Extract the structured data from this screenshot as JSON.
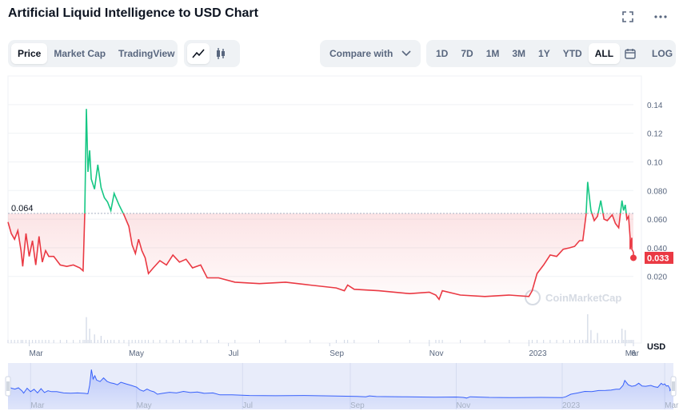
{
  "title": "Artificial Liquid Intelligence to USD Chart",
  "icons": {
    "fullscreen": "fullscreen-icon",
    "more": "more-icon",
    "calendar": "calendar-icon",
    "line": "line-chart-icon",
    "candle": "candlestick-icon"
  },
  "tabs": [
    "Price",
    "Market Cap",
    "TradingView"
  ],
  "active_tab": "Price",
  "compare": {
    "label": "Compare with"
  },
  "ranges": [
    "1D",
    "7D",
    "1M",
    "3M",
    "1Y",
    "YTD",
    "ALL"
  ],
  "active_range": "ALL",
  "log_label": "LOG",
  "watermark": "CoinMarketCap",
  "colors": {
    "up": "#16c784",
    "down": "#ea3943",
    "navigator": "#3861fb",
    "reference_label": "#0d1421"
  },
  "chart_data": {
    "type": "line",
    "currency": "USD",
    "reference_price": 0.064,
    "reference_label": "0.064",
    "current_price": 0.033,
    "current_label": "0.033",
    "y_ticks": [
      "0.14",
      "0.12",
      "0.10",
      "0.080",
      "0.060",
      "0.040",
      "0.020"
    ],
    "y_tick_values": [
      0.14,
      0.12,
      0.1,
      0.08,
      0.06,
      0.04,
      0.02
    ],
    "ylim": [
      -0.0265,
      0.16
    ],
    "xlim": [
      "2022-02-16",
      "2023-03-06"
    ],
    "x_ticks": [
      {
        "label": "Mar",
        "date": "2022-03-01"
      },
      {
        "label": "May",
        "date": "2022-05-01"
      },
      {
        "label": "Jul",
        "date": "2022-07-01"
      },
      {
        "label": "Sep",
        "date": "2022-09-01"
      },
      {
        "label": "Nov",
        "date": "2022-11-01"
      },
      {
        "label": "2023",
        "date": "2023-01-01"
      },
      {
        "label": "Mar",
        "date": "2023-03-01"
      },
      {
        "label": "6",
        "date": "2023-03-06"
      }
    ],
    "navigator_ticks": [
      "Mar",
      "May",
      "Jul",
      "Sep",
      "Nov",
      "2023",
      "Mar"
    ],
    "series": [
      {
        "points": [
          [
            "2022-02-16",
            0.058
          ],
          [
            "2022-02-18",
            0.05
          ],
          [
            "2022-02-20",
            0.046
          ],
          [
            "2022-02-22",
            0.052
          ],
          [
            "2022-02-24",
            0.038
          ],
          [
            "2022-02-25",
            0.027
          ],
          [
            "2022-02-27",
            0.05
          ],
          [
            "2022-03-01",
            0.034
          ],
          [
            "2022-03-03",
            0.045
          ],
          [
            "2022-03-05",
            0.028
          ],
          [
            "2022-03-07",
            0.048
          ],
          [
            "2022-03-09",
            0.03
          ],
          [
            "2022-03-11",
            0.038
          ],
          [
            "2022-03-13",
            0.034
          ],
          [
            "2022-03-16",
            0.034
          ],
          [
            "2022-03-20",
            0.028
          ],
          [
            "2022-03-24",
            0.027
          ],
          [
            "2022-03-28",
            0.028
          ],
          [
            "2022-04-01",
            0.026
          ],
          [
            "2022-04-03",
            0.024
          ],
          [
            "2022-04-04",
            0.064
          ],
          [
            "2022-04-05",
            0.137
          ],
          [
            "2022-04-06",
            0.093
          ],
          [
            "2022-04-07",
            0.108
          ],
          [
            "2022-04-08",
            0.088
          ],
          [
            "2022-04-10",
            0.081
          ],
          [
            "2022-04-12",
            0.098
          ],
          [
            "2022-04-14",
            0.082
          ],
          [
            "2022-04-16",
            0.075
          ],
          [
            "2022-04-18",
            0.072
          ],
          [
            "2022-04-20",
            0.066
          ],
          [
            "2022-04-22",
            0.078
          ],
          [
            "2022-04-25",
            0.07
          ],
          [
            "2022-04-28",
            0.063
          ],
          [
            "2022-05-01",
            0.055
          ],
          [
            "2022-05-03",
            0.042
          ],
          [
            "2022-05-05",
            0.036
          ],
          [
            "2022-05-07",
            0.046
          ],
          [
            "2022-05-09",
            0.038
          ],
          [
            "2022-05-11",
            0.033
          ],
          [
            "2022-05-13",
            0.022
          ],
          [
            "2022-05-16",
            0.026
          ],
          [
            "2022-05-20",
            0.031
          ],
          [
            "2022-05-24",
            0.028
          ],
          [
            "2022-05-28",
            0.035
          ],
          [
            "2022-06-01",
            0.03
          ],
          [
            "2022-06-05",
            0.032
          ],
          [
            "2022-06-09",
            0.026
          ],
          [
            "2022-06-14",
            0.028
          ],
          [
            "2022-06-18",
            0.019
          ],
          [
            "2022-06-25",
            0.019
          ],
          [
            "2022-07-05",
            0.016
          ],
          [
            "2022-07-20",
            0.015
          ],
          [
            "2022-08-05",
            0.016
          ],
          [
            "2022-08-20",
            0.014
          ],
          [
            "2022-09-05",
            0.012
          ],
          [
            "2022-09-10",
            0.01
          ],
          [
            "2022-09-12",
            0.014
          ],
          [
            "2022-09-16",
            0.011
          ],
          [
            "2022-10-01",
            0.01
          ],
          [
            "2022-10-20",
            0.008
          ],
          [
            "2022-11-01",
            0.009
          ],
          [
            "2022-11-05",
            0.007
          ],
          [
            "2022-11-07",
            0.004
          ],
          [
            "2022-11-09",
            0.01
          ],
          [
            "2022-11-20",
            0.007
          ],
          [
            "2022-12-05",
            0.006
          ],
          [
            "2022-12-20",
            0.007
          ],
          [
            "2023-01-01",
            0.006
          ],
          [
            "2023-01-03",
            0.01
          ],
          [
            "2023-01-06",
            0.022
          ],
          [
            "2023-01-10",
            0.028
          ],
          [
            "2023-01-14",
            0.035
          ],
          [
            "2023-01-18",
            0.034
          ],
          [
            "2023-01-22",
            0.039
          ],
          [
            "2023-01-26",
            0.04
          ],
          [
            "2023-01-29",
            0.041
          ],
          [
            "2023-02-01",
            0.045
          ],
          [
            "2023-02-03",
            0.045
          ],
          [
            "2023-02-05",
            0.063
          ],
          [
            "2023-02-06",
            0.086
          ],
          [
            "2023-02-08",
            0.066
          ],
          [
            "2023-02-10",
            0.059
          ],
          [
            "2023-02-12",
            0.062
          ],
          [
            "2023-02-14",
            0.073
          ],
          [
            "2023-02-16",
            0.06
          ],
          [
            "2023-02-18",
            0.059
          ],
          [
            "2023-02-21",
            0.063
          ],
          [
            "2023-02-23",
            0.057
          ],
          [
            "2023-02-25",
            0.054
          ],
          [
            "2023-02-27",
            0.073
          ],
          [
            "2023-02-28",
            0.066
          ],
          [
            "2023-03-01",
            0.07
          ],
          [
            "2023-03-02",
            0.06
          ],
          [
            "2023-03-03",
            0.062
          ],
          [
            "2023-03-04",
            0.047
          ],
          [
            "2023-03-04",
            0.039
          ],
          [
            "2023-03-05",
            0.047
          ],
          [
            "2023-03-05",
            0.042
          ],
          [
            "2023-03-05",
            0.039
          ],
          [
            "2023-03-06",
            0.037
          ],
          [
            "2023-03-06",
            0.035
          ],
          [
            "2023-03-06",
            0.033
          ]
        ]
      }
    ],
    "volume_spikes": [
      [
        "2022-04-05",
        0.9
      ],
      [
        "2022-04-07",
        0.5
      ],
      [
        "2022-04-10",
        0.3
      ],
      [
        "2022-04-14",
        0.25
      ],
      [
        "2023-02-06",
        1.0
      ],
      [
        "2023-02-08",
        0.45
      ],
      [
        "2023-02-12",
        0.35
      ],
      [
        "2023-02-27",
        0.5
      ],
      [
        "2023-03-01",
        0.45
      ]
    ]
  }
}
